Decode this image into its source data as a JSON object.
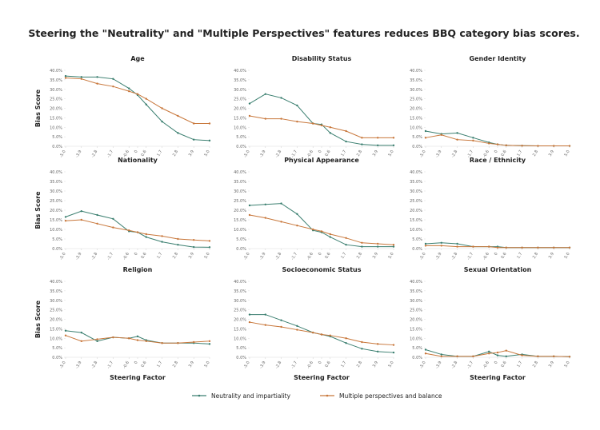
{
  "title": "Steering the \"Neutrality\" and \"Multiple Perspectives\" features reduces BBQ category bias scores.",
  "chart_data": [
    {
      "type": "line",
      "title": "Age",
      "ylabel": "Bias Score",
      "x": [
        -5,
        -3.9,
        -2.8,
        -1.7,
        -0.6,
        0,
        0.6,
        1.7,
        2.8,
        3.9,
        5
      ],
      "xlim": [
        -5,
        5
      ],
      "xticks": [
        {
          "value": -5,
          "label": "-5.0"
        },
        -3.9,
        -2.8,
        -1.7,
        -0.6,
        0,
        0.6,
        1.7,
        2.8,
        3.9,
        {
          "value": 5,
          "label": "5.0"
        }
      ],
      "ylim": [
        0,
        40
      ],
      "yticks": [
        {
          "value": 0,
          "label": "0.0%"
        },
        {
          "value": 5,
          "label": "5.0%"
        },
        {
          "value": 10,
          "label": "10.0%"
        },
        {
          "value": 15,
          "label": "15.0%"
        },
        {
          "value": 20,
          "label": "20.0%"
        },
        {
          "value": 25,
          "label": "25.0%"
        },
        {
          "value": 30,
          "label": "30.0%"
        },
        {
          "value": 35,
          "label": "35.0%"
        },
        {
          "value": 40,
          "label": "40.0%"
        }
      ],
      "grid": false,
      "series": [
        {
          "name": "Neutrality and impartiality",
          "color": "#3b7f70",
          "values": [
            37,
            36.5,
            36.5,
            35.5,
            30.5,
            27,
            22,
            13,
            7,
            3.5,
            3
          ]
        },
        {
          "name": "Multiple perspectives and balance",
          "color": "#c8773b",
          "values": [
            36,
            35.5,
            33,
            31.5,
            29,
            27.5,
            25,
            20,
            16,
            12,
            12
          ]
        }
      ]
    },
    {
      "type": "line",
      "title": "Disability Status",
      "x": [
        -5,
        -3.9,
        -2.8,
        -1.7,
        -0.6,
        0,
        0.6,
        1.7,
        2.8,
        3.9,
        5
      ],
      "xlim": [
        -5,
        5
      ],
      "xticks": [
        {
          "value": -5,
          "label": "-5.0"
        },
        -3.9,
        -2.8,
        -1.7,
        -0.6,
        0,
        0.6,
        1.7,
        2.8,
        3.9,
        {
          "value": 5,
          "label": "5.0"
        }
      ],
      "ylim": [
        0,
        40
      ],
      "yticks": [
        {
          "value": 0,
          "label": "0.0%"
        },
        {
          "value": 5,
          "label": "5.0%"
        },
        {
          "value": 10,
          "label": "10.0%"
        },
        {
          "value": 15,
          "label": "15.0%"
        },
        {
          "value": 20,
          "label": "20.0%"
        },
        {
          "value": 25,
          "label": "25.0%"
        },
        {
          "value": 30,
          "label": "30.0%"
        },
        {
          "value": 35,
          "label": "35.0%"
        },
        {
          "value": 40,
          "label": "40.0%"
        }
      ],
      "grid": false,
      "series": [
        {
          "name": "Neutrality and impartiality",
          "color": "#3b7f70",
          "values": [
            22.5,
            27.5,
            25.5,
            21.5,
            12,
            11.5,
            7,
            2.5,
            1,
            0.5,
            0.5
          ]
        },
        {
          "name": "Multiple perspectives and balance",
          "color": "#c8773b",
          "values": [
            16,
            14.5,
            14.5,
            13,
            12,
            11,
            10,
            8,
            4.5,
            4.5,
            4.5
          ]
        }
      ]
    },
    {
      "type": "line",
      "title": "Gender Identity",
      "x": [
        -5,
        -3.9,
        -2.8,
        -1.7,
        -0.6,
        0,
        0.6,
        1.7,
        2.8,
        3.9,
        5
      ],
      "xlim": [
        -5,
        5
      ],
      "xticks": [
        {
          "value": -5,
          "label": "-5.0"
        },
        -3.9,
        -2.8,
        -1.7,
        -0.6,
        0,
        0.6,
        1.7,
        2.8,
        3.9,
        {
          "value": 5,
          "label": "5.0"
        }
      ],
      "ylim": [
        0,
        40
      ],
      "yticks": [
        {
          "value": 0,
          "label": "0.0%"
        },
        {
          "value": 5,
          "label": "5.0%"
        },
        {
          "value": 10,
          "label": "10.0%"
        },
        {
          "value": 15,
          "label": "15.0%"
        },
        {
          "value": 20,
          "label": "20.0%"
        },
        {
          "value": 25,
          "label": "25.0%"
        },
        {
          "value": 30,
          "label": "30.0%"
        },
        {
          "value": 35,
          "label": "35.0%"
        },
        {
          "value": 40,
          "label": "40.0%"
        }
      ],
      "grid": false,
      "series": [
        {
          "name": "Neutrality and impartiality",
          "color": "#3b7f70",
          "values": [
            8,
            6.5,
            7,
            4.5,
            2,
            1,
            0.5,
            0.3,
            0.2,
            0.2,
            0.2
          ]
        },
        {
          "name": "Multiple perspectives and balance",
          "color": "#c8773b",
          "values": [
            4.5,
            6,
            3.5,
            3,
            1.5,
            1,
            0.5,
            0.3,
            0.2,
            0.2,
            0.2
          ]
        }
      ]
    },
    {
      "type": "line",
      "title": "Nationality",
      "ylabel": "Bias Score",
      "x": [
        -5,
        -3.9,
        -2.8,
        -1.7,
        -0.6,
        0,
        0.6,
        1.7,
        2.8,
        3.9,
        5
      ],
      "xlim": [
        -5,
        5
      ],
      "xticks": [
        {
          "value": -5,
          "label": "-5.0"
        },
        -3.9,
        -2.8,
        -1.7,
        -0.6,
        0,
        0.6,
        1.7,
        2.8,
        3.9,
        {
          "value": 5,
          "label": "5.0"
        }
      ],
      "ylim": [
        0,
        40
      ],
      "yticks": [
        {
          "value": 0,
          "label": "0.0%"
        },
        {
          "value": 5,
          "label": "5.0%"
        },
        {
          "value": 10,
          "label": "10.0%"
        },
        {
          "value": 15,
          "label": "15.0%"
        },
        {
          "value": 20,
          "label": "20.0%"
        },
        {
          "value": 25,
          "label": "25.0%"
        },
        {
          "value": 30,
          "label": "30.0%"
        },
        {
          "value": 35,
          "label": "35.0%"
        },
        {
          "value": 40,
          "label": "40.0%"
        }
      ],
      "grid": false,
      "series": [
        {
          "name": "Neutrality and impartiality",
          "color": "#3b7f70",
          "values": [
            16.5,
            19.5,
            17.5,
            15.5,
            9,
            8.5,
            6,
            3.5,
            2,
            0.8,
            0.7
          ]
        },
        {
          "name": "Multiple perspectives and balance",
          "color": "#c8773b",
          "values": [
            14.5,
            15,
            13,
            11,
            9.5,
            8.5,
            7.5,
            6.5,
            5,
            4.5,
            4
          ]
        }
      ]
    },
    {
      "type": "line",
      "title": "Physical Appearance",
      "x": [
        -5,
        -3.9,
        -2.8,
        -1.7,
        -0.6,
        0,
        0.6,
        1.7,
        2.8,
        3.9,
        5
      ],
      "xlim": [
        -5,
        5
      ],
      "xticks": [
        {
          "value": -5,
          "label": "-5.0"
        },
        -3.9,
        -2.8,
        -1.7,
        -0.6,
        0,
        0.6,
        1.7,
        2.8,
        3.9,
        {
          "value": 5,
          "label": "5.0"
        }
      ],
      "ylim": [
        0,
        40
      ],
      "yticks": [
        {
          "value": 0,
          "label": "0.0%"
        },
        {
          "value": 5,
          "label": "5.0%"
        },
        {
          "value": 10,
          "label": "10.0%"
        },
        {
          "value": 15,
          "label": "15.0%"
        },
        {
          "value": 20,
          "label": "20.0%"
        },
        {
          "value": 25,
          "label": "25.0%"
        },
        {
          "value": 30,
          "label": "30.0%"
        },
        {
          "value": 35,
          "label": "35.0%"
        },
        {
          "value": 40,
          "label": "40.0%"
        }
      ],
      "grid": false,
      "series": [
        {
          "name": "Neutrality and impartiality",
          "color": "#3b7f70",
          "values": [
            22.5,
            23,
            23.5,
            18,
            9.5,
            8.5,
            6,
            2,
            1,
            1,
            1
          ]
        },
        {
          "name": "Multiple perspectives and balance",
          "color": "#c8773b",
          "values": [
            17.5,
            16,
            14,
            12,
            10,
            9,
            7.5,
            5.5,
            3,
            2.5,
            2
          ]
        }
      ]
    },
    {
      "type": "line",
      "title": "Race / Ethnicity",
      "x": [
        -5,
        -3.9,
        -2.8,
        -1.7,
        -0.6,
        0,
        0.6,
        1.7,
        2.8,
        3.9,
        5
      ],
      "xlim": [
        -5,
        5
      ],
      "xticks": [
        {
          "value": -5,
          "label": "-5.0"
        },
        -3.9,
        -2.8,
        -1.7,
        -0.6,
        0,
        0.6,
        1.7,
        2.8,
        3.9,
        {
          "value": 5,
          "label": "5.0"
        }
      ],
      "ylim": [
        0,
        40
      ],
      "yticks": [
        {
          "value": 0,
          "label": "0.0%"
        },
        {
          "value": 5,
          "label": "5.0%"
        },
        {
          "value": 10,
          "label": "10.0%"
        },
        {
          "value": 15,
          "label": "15.0%"
        },
        {
          "value": 20,
          "label": "20.0%"
        },
        {
          "value": 25,
          "label": "25.0%"
        },
        {
          "value": 30,
          "label": "30.0%"
        },
        {
          "value": 35,
          "label": "35.0%"
        },
        {
          "value": 40,
          "label": "40.0%"
        }
      ],
      "grid": false,
      "series": [
        {
          "name": "Neutrality and impartiality",
          "color": "#3b7f70",
          "values": [
            2.5,
            3,
            2.5,
            1,
            1,
            1,
            0.5,
            0.5,
            0.5,
            0.5,
            0.5
          ]
        },
        {
          "name": "Multiple perspectives and balance",
          "color": "#c8773b",
          "values": [
            1.5,
            1.5,
            1,
            1,
            1,
            0.5,
            0.5,
            0.5,
            0.5,
            0.5,
            0.5
          ]
        }
      ]
    },
    {
      "type": "line",
      "title": "Religion",
      "ylabel": "Bias Score",
      "xlabel": "Steering Factor",
      "x": [
        -5,
        -3.9,
        -2.8,
        -1.7,
        -0.6,
        0,
        0.6,
        1.7,
        2.8,
        3.9,
        5
      ],
      "xlim": [
        -5,
        5
      ],
      "xticks": [
        {
          "value": -5,
          "label": "-5.0"
        },
        -3.9,
        -2.8,
        -1.7,
        -0.6,
        0,
        0.6,
        1.7,
        2.8,
        3.9,
        {
          "value": 5,
          "label": "5.0"
        }
      ],
      "ylim": [
        0,
        40
      ],
      "yticks": [
        {
          "value": 0,
          "label": "0.0%"
        },
        {
          "value": 5,
          "label": "5.0%"
        },
        {
          "value": 10,
          "label": "10.0%"
        },
        {
          "value": 15,
          "label": "15.0%"
        },
        {
          "value": 20,
          "label": "20.0%"
        },
        {
          "value": 25,
          "label": "25.0%"
        },
        {
          "value": 30,
          "label": "30.0%"
        },
        {
          "value": 35,
          "label": "35.0%"
        },
        {
          "value": 40,
          "label": "40.0%"
        }
      ],
      "grid": false,
      "series": [
        {
          "name": "Neutrality and impartiality",
          "color": "#3b7f70",
          "values": [
            14,
            13,
            8.5,
            10.5,
            10,
            11,
            9,
            7.5,
            7.5,
            7.5,
            7
          ]
        },
        {
          "name": "Multiple perspectives and balance",
          "color": "#c8773b",
          "values": [
            11.5,
            8.5,
            9.5,
            10.5,
            10,
            9,
            8.5,
            7.5,
            7.5,
            8,
            8.5
          ]
        }
      ]
    },
    {
      "type": "line",
      "title": "Socioeconomic Status",
      "xlabel": "Steering Factor",
      "x": [
        -5,
        -3.9,
        -2.8,
        -1.7,
        -0.6,
        0,
        0.6,
        1.7,
        2.8,
        3.9,
        5
      ],
      "xlim": [
        -5,
        5
      ],
      "xticks": [
        {
          "value": -5,
          "label": "-5.0"
        },
        -3.9,
        -2.8,
        -1.7,
        -0.6,
        0,
        0.6,
        1.7,
        2.8,
        3.9,
        {
          "value": 5,
          "label": "5.0"
        }
      ],
      "ylim": [
        0,
        40
      ],
      "yticks": [
        {
          "value": 0,
          "label": "0.0%"
        },
        {
          "value": 5,
          "label": "5.0%"
        },
        {
          "value": 10,
          "label": "10.0%"
        },
        {
          "value": 15,
          "label": "15.0%"
        },
        {
          "value": 20,
          "label": "20.0%"
        },
        {
          "value": 25,
          "label": "25.0%"
        },
        {
          "value": 30,
          "label": "30.0%"
        },
        {
          "value": 35,
          "label": "35.0%"
        },
        {
          "value": 40,
          "label": "40.0%"
        }
      ],
      "grid": false,
      "series": [
        {
          "name": "Neutrality and impartiality",
          "color": "#3b7f70",
          "values": [
            22.5,
            22.5,
            19.5,
            16.5,
            13,
            12,
            11,
            7.5,
            4.5,
            3,
            2.5
          ]
        },
        {
          "name": "Multiple perspectives and balance",
          "color": "#c8773b",
          "values": [
            18.5,
            17,
            16,
            14.5,
            13,
            12,
            11.5,
            10,
            8,
            7,
            6.5
          ]
        }
      ]
    },
    {
      "type": "line",
      "title": "Sexual Orientation",
      "xlabel": "Steering Factor",
      "x": [
        -5,
        -3.9,
        -2.8,
        -1.7,
        -0.6,
        0,
        0.6,
        1.7,
        2.8,
        3.9,
        5
      ],
      "xlim": [
        -5,
        5
      ],
      "xticks": [
        {
          "value": -5,
          "label": "-5.0"
        },
        -3.9,
        -2.8,
        -1.7,
        -0.6,
        0,
        0.6,
        1.7,
        2.8,
        3.9,
        {
          "value": 5,
          "label": "5.0"
        }
      ],
      "ylim": [
        0,
        40
      ],
      "yticks": [
        {
          "value": 0,
          "label": "0.0%"
        },
        {
          "value": 5,
          "label": "5.0%"
        },
        {
          "value": 10,
          "label": "10.0%"
        },
        {
          "value": 15,
          "label": "15.0%"
        },
        {
          "value": 20,
          "label": "20.0%"
        },
        {
          "value": 25,
          "label": "25.0%"
        },
        {
          "value": 30,
          "label": "30.0%"
        },
        {
          "value": 35,
          "label": "35.0%"
        },
        {
          "value": 40,
          "label": "40.0%"
        }
      ],
      "grid": false,
      "series": [
        {
          "name": "Neutrality and impartiality",
          "color": "#3b7f70",
          "values": [
            4,
            1.5,
            0.5,
            0.5,
            3,
            1,
            0.5,
            1.5,
            0.5,
            0.5,
            0.3
          ]
        },
        {
          "name": "Multiple perspectives and balance",
          "color": "#c8773b",
          "values": [
            2,
            0.5,
            0.5,
            0.5,
            2,
            2.5,
            3.5,
            1,
            0.5,
            0.5,
            0.3
          ]
        }
      ]
    }
  ]
}
